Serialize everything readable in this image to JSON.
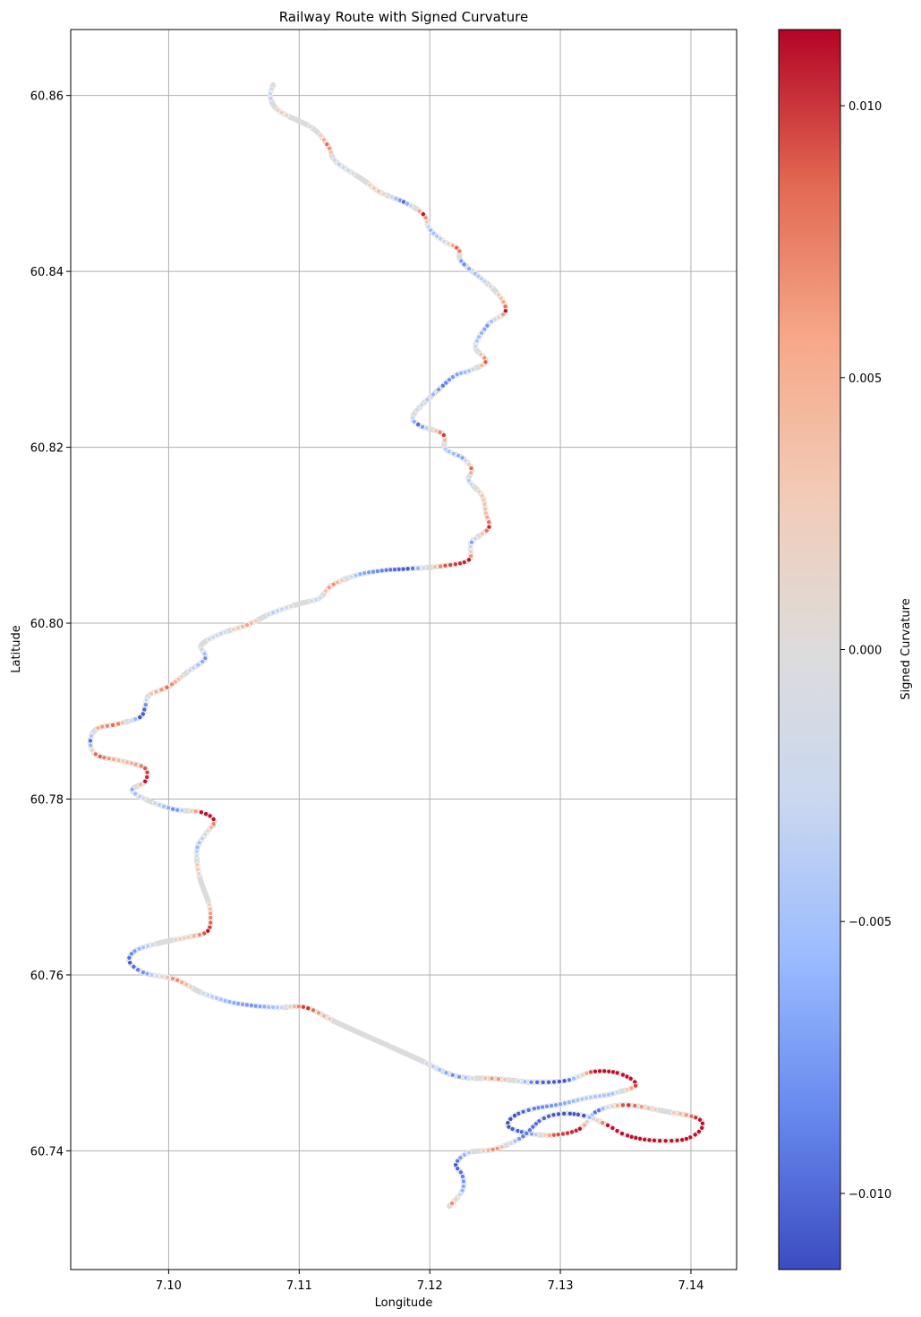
{
  "chart_data": {
    "type": "scatter",
    "title": "Railway Route with Signed Curvature",
    "xlabel": "Longitude",
    "ylabel": "Latitude",
    "xlim": [
      7.0925,
      7.1435
    ],
    "ylim": [
      60.7265,
      60.8675
    ],
    "x_ticks": [
      7.1,
      7.11,
      7.12,
      7.13,
      7.14
    ],
    "x_tick_labels": [
      "7.10",
      "7.11",
      "7.12",
      "7.13",
      "7.14"
    ],
    "y_ticks": [
      60.74,
      60.76,
      60.78,
      60.8,
      60.82,
      60.84,
      60.86
    ],
    "y_tick_labels": [
      "60.74",
      "60.76",
      "60.78",
      "60.80",
      "60.82",
      "60.84",
      "60.86"
    ],
    "grid": true,
    "colormap": "coolwarm",
    "colorbar": {
      "label": "Signed Curvature",
      "range": [
        -0.0114,
        0.0114
      ],
      "ticks": [
        -0.01,
        -0.005,
        0.0,
        0.005,
        0.01
      ],
      "tick_labels": [
        "−0.010",
        "−0.005",
        "0.000",
        "0.005",
        "0.010"
      ],
      "colors": [
        "#3b4cc0",
        "#6788ee",
        "#9abbff",
        "#c9d7f0",
        "#dddcdc",
        "#f2cbb7",
        "#f7a889",
        "#e26952",
        "#b40426"
      ]
    },
    "route_color": "#dddcdc",
    "route": [
      [
        7.108,
        60.8612
      ],
      [
        7.1078,
        60.8598
      ],
      [
        7.1085,
        60.8582
      ],
      [
        7.111,
        60.8563
      ],
      [
        7.1122,
        60.8543
      ],
      [
        7.1128,
        60.8525
      ],
      [
        7.1148,
        60.8505
      ],
      [
        7.1162,
        60.849
      ],
      [
        7.118,
        60.8479
      ],
      [
        7.1195,
        60.8465
      ],
      [
        7.12,
        60.8448
      ],
      [
        7.121,
        60.8435
      ],
      [
        7.1222,
        60.8425
      ],
      [
        7.1225,
        60.841
      ],
      [
        7.125,
        60.8378
      ],
      [
        7.1258,
        60.8355
      ],
      [
        7.1245,
        60.834
      ],
      [
        7.1235,
        60.8315
      ],
      [
        7.1243,
        60.8298
      ],
      [
        7.1232,
        60.8288
      ],
      [
        7.122,
        60.8282
      ],
      [
        7.121,
        60.827
      ],
      [
        7.1188,
        60.8238
      ],
      [
        7.1192,
        60.8225
      ],
      [
        7.121,
        60.8215
      ],
      [
        7.1212,
        60.8198
      ],
      [
        7.1225,
        60.8188
      ],
      [
        7.1232,
        60.8175
      ],
      [
        7.123,
        60.8162
      ],
      [
        7.124,
        60.8145
      ],
      [
        7.1243,
        60.8125
      ],
      [
        7.1245,
        60.8108
      ],
      [
        7.1232,
        60.8092
      ],
      [
        7.123,
        60.8072
      ],
      [
        7.121,
        60.8065
      ],
      [
        7.1185,
        60.8062
      ],
      [
        7.1165,
        60.806
      ],
      [
        7.1145,
        60.8055
      ],
      [
        7.1125,
        60.8043
      ],
      [
        7.1115,
        60.8028
      ],
      [
        7.11,
        60.8022
      ],
      [
        7.108,
        60.8012
      ],
      [
        7.106,
        60.7998
      ],
      [
        7.104,
        60.7988
      ],
      [
        7.1025,
        60.7975
      ],
      [
        7.1028,
        60.796
      ],
      [
        7.1015,
        60.7945
      ],
      [
        7.1,
        60.7928
      ],
      [
        7.0985,
        60.7918
      ],
      [
        7.0982,
        60.7905
      ],
      [
        7.0978,
        60.7893
      ],
      [
        7.096,
        60.7885
      ],
      [
        7.0945,
        60.788
      ],
      [
        7.094,
        60.7865
      ],
      [
        7.0945,
        60.785
      ],
      [
        7.0965,
        60.7843
      ],
      [
        7.0982,
        60.7835
      ],
      [
        7.0982,
        60.782
      ],
      [
        7.0972,
        60.781
      ],
      [
        7.0985,
        60.7798
      ],
      [
        7.1005,
        60.7788
      ],
      [
        7.1025,
        60.7785
      ],
      [
        7.1035,
        60.7775
      ],
      [
        7.1028,
        60.776
      ],
      [
        7.1022,
        60.7745
      ],
      [
        7.1022,
        60.7725
      ],
      [
        7.1025,
        60.7705
      ],
      [
        7.103,
        60.7685
      ],
      [
        7.1032,
        60.767
      ],
      [
        7.103,
        60.765
      ],
      [
        7.1015,
        60.7643
      ],
      [
        7.0995,
        60.7637
      ],
      [
        7.0975,
        60.7628
      ],
      [
        7.097,
        60.7615
      ],
      [
        7.0982,
        60.7602
      ],
      [
        7.1005,
        60.7595
      ],
      [
        7.1025,
        60.758
      ],
      [
        7.1045,
        60.757
      ],
      [
        7.1065,
        60.7565
      ],
      [
        7.1085,
        60.7563
      ],
      [
        7.1105,
        60.7563
      ],
      [
        7.113,
        60.7545
      ],
      [
        7.116,
        60.7525
      ],
      [
        7.119,
        60.7505
      ],
      [
        7.122,
        60.7485
      ],
      [
        7.125,
        60.7482
      ],
      [
        7.128,
        60.7478
      ],
      [
        7.1305,
        60.748
      ],
      [
        7.1325,
        60.749
      ],
      [
        7.1345,
        60.7488
      ],
      [
        7.1358,
        60.7475
      ],
      [
        7.134,
        60.7465
      ],
      [
        7.132,
        60.746
      ],
      [
        7.13,
        60.7453
      ],
      [
        7.128,
        60.7448
      ],
      [
        7.1265,
        60.744
      ],
      [
        7.126,
        60.7428
      ],
      [
        7.1275,
        60.742
      ],
      [
        7.1295,
        60.7418
      ],
      [
        7.1315,
        60.7425
      ],
      [
        7.1328,
        60.7445
      ],
      [
        7.135,
        60.7452
      ],
      [
        7.138,
        60.7445
      ],
      [
        7.1405,
        60.7437
      ],
      [
        7.1408,
        60.7425
      ],
      [
        7.1395,
        60.7413
      ],
      [
        7.137,
        60.7412
      ],
      [
        7.135,
        60.7418
      ],
      [
        7.1335,
        60.743
      ],
      [
        7.1318,
        60.744
      ],
      [
        7.13,
        60.7442
      ],
      [
        7.1285,
        60.7435
      ],
      [
        7.127,
        60.7415
      ],
      [
        7.125,
        60.7402
      ],
      [
        7.123,
        60.7398
      ],
      [
        7.122,
        60.7385
      ],
      [
        7.1225,
        60.7372
      ],
      [
        7.1225,
        60.7355
      ],
      [
        7.1215,
        60.7337
      ]
    ],
    "curvature": [
      0.0,
      -0.004,
      0.003,
      -0.002,
      0.009,
      -0.004,
      0.0,
      0.004,
      -0.01,
      0.011,
      -0.006,
      -0.003,
      0.011,
      -0.009,
      0.0,
      0.011,
      -0.008,
      -0.003,
      0.01,
      -0.004,
      -0.007,
      -0.009,
      0.0,
      -0.011,
      0.011,
      -0.004,
      -0.007,
      0.01,
      -0.004,
      0.003,
      0.004,
      0.011,
      -0.007,
      0.011,
      0.009,
      -0.011,
      -0.009,
      -0.006,
      0.008,
      -0.003,
      0.0,
      -0.004,
      0.006,
      -0.003,
      0.0,
      -0.008,
      -0.002,
      0.009,
      0.002,
      -0.01,
      -0.011,
      0.009,
      0.005,
      -0.011,
      0.01,
      0.003,
      0.009,
      0.011,
      -0.008,
      0.0,
      -0.009,
      0.011,
      0.011,
      -0.002,
      -0.006,
      0.003,
      0.0,
      0.0,
      0.006,
      0.011,
      0.003,
      0.0,
      -0.007,
      -0.011,
      -0.008,
      0.008,
      -0.002,
      -0.006,
      -0.008,
      -0.004,
      0.011,
      0.0,
      0.0,
      0.0,
      -0.009,
      0.008,
      -0.01,
      -0.011,
      0.011,
      0.011,
      0.011,
      -0.005,
      -0.004,
      -0.007,
      -0.009,
      -0.011,
      -0.011,
      -0.01,
      0.009,
      0.011,
      -0.011,
      0.011,
      0.0,
      0.011,
      0.011,
      0.011,
      0.011,
      0.011,
      0.011,
      -0.011,
      -0.011,
      -0.01,
      -0.009,
      0.008,
      -0.004,
      -0.011,
      -0.009,
      -0.006,
      0.011
    ]
  }
}
